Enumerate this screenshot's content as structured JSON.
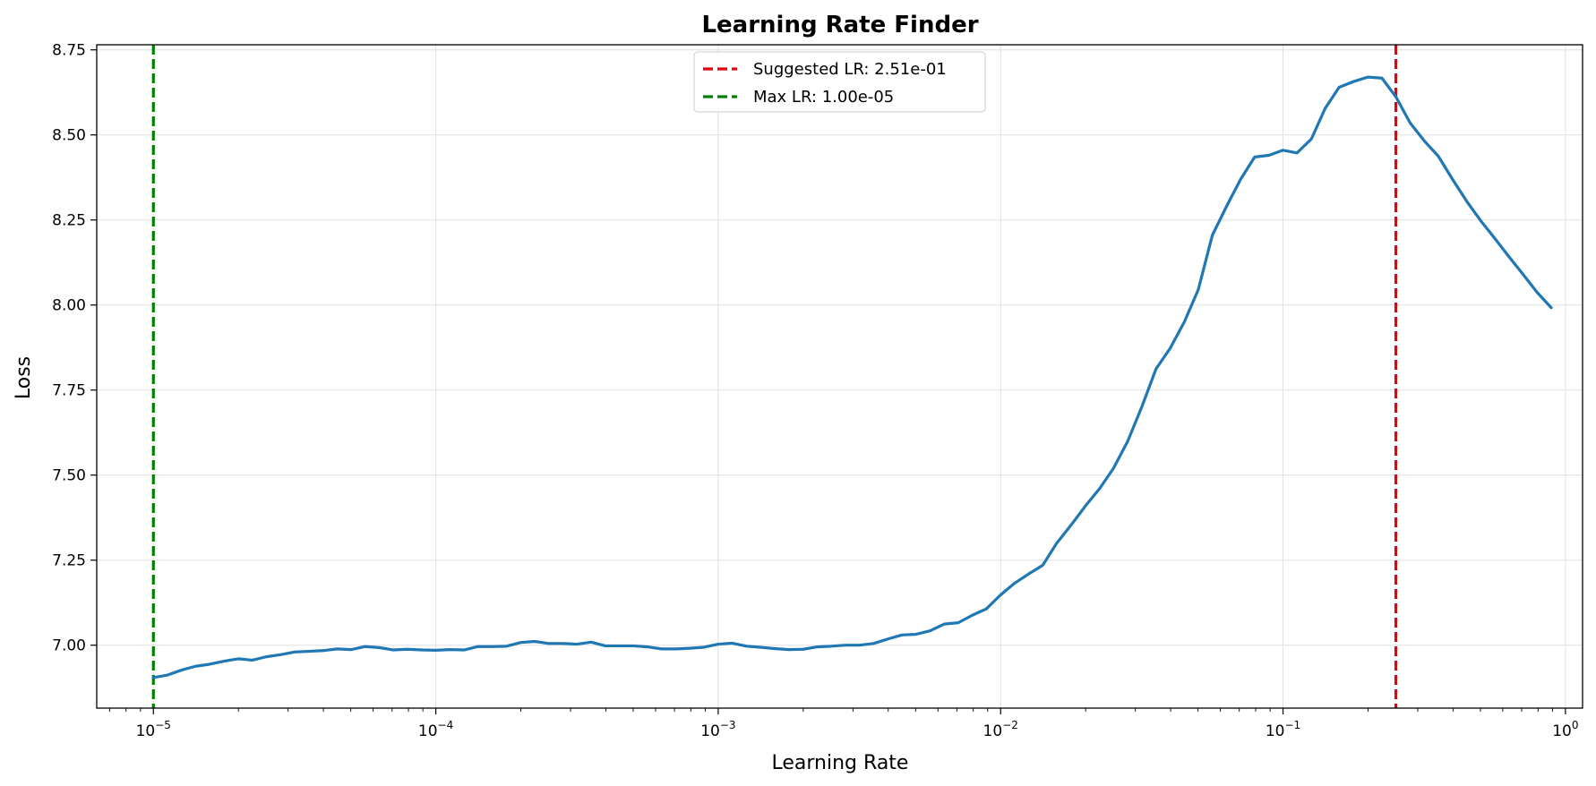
{
  "chart_data": {
    "type": "line",
    "title": "Learning Rate Finder",
    "xlabel": "Learning Rate",
    "ylabel": "Loss",
    "xscale": "log",
    "xlim": [
      6.3e-06,
      1.15
    ],
    "ylim": [
      6.815,
      8.765
    ],
    "x_ticks": [
      {
        "value": 1e-05,
        "base": "10",
        "exp": "−5"
      },
      {
        "value": 0.0001,
        "base": "10",
        "exp": "−4"
      },
      {
        "value": 0.001,
        "base": "10",
        "exp": "−3"
      },
      {
        "value": 0.01,
        "base": "10",
        "exp": "−2"
      },
      {
        "value": 0.1,
        "base": "10",
        "exp": "−1"
      },
      {
        "value": 1,
        "base": "10",
        "exp": "0"
      }
    ],
    "y_ticks": [
      {
        "value": 7.0,
        "label": "7.00"
      },
      {
        "value": 7.25,
        "label": "7.25"
      },
      {
        "value": 7.5,
        "label": "7.50"
      },
      {
        "value": 7.75,
        "label": "7.75"
      },
      {
        "value": 8.0,
        "label": "8.00"
      },
      {
        "value": 8.25,
        "label": "8.25"
      },
      {
        "value": 8.5,
        "label": "8.50"
      },
      {
        "value": 8.75,
        "label": "8.75"
      }
    ],
    "grid": true,
    "legend_position": "top-center",
    "series": [
      {
        "color": "#1f77b4",
        "points": [
          [
            1e-05,
            6.905
          ],
          [
            1.12e-05,
            6.912
          ],
          [
            1.26e-05,
            6.927
          ],
          [
            1.41e-05,
            6.938
          ],
          [
            1.58e-05,
            6.944
          ],
          [
            1.78e-05,
            6.953
          ],
          [
            2e-05,
            6.96
          ],
          [
            2.24e-05,
            6.956
          ],
          [
            2.51e-05,
            6.966
          ],
          [
            2.82e-05,
            6.972
          ],
          [
            3.16e-05,
            6.98
          ],
          [
            3.55e-05,
            6.982
          ],
          [
            3.98e-05,
            6.984
          ],
          [
            4.47e-05,
            6.989
          ],
          [
            5.01e-05,
            6.987
          ],
          [
            5.62e-05,
            6.996
          ],
          [
            6.31e-05,
            6.993
          ],
          [
            7.08e-05,
            6.986
          ],
          [
            7.94e-05,
            6.988
          ],
          [
            8.91e-05,
            6.986
          ],
          [
            0.0001,
            6.985
          ],
          [
            0.000112,
            6.987
          ],
          [
            0.000126,
            6.986
          ],
          [
            0.000141,
            6.996
          ],
          [
            0.000158,
            6.996
          ],
          [
            0.000178,
            6.997
          ],
          [
            0.0002,
            7.008
          ],
          [
            0.000224,
            7.011
          ],
          [
            0.000251,
            7.005
          ],
          [
            0.000282,
            7.005
          ],
          [
            0.000316,
            7.003
          ],
          [
            0.000355,
            7.009
          ],
          [
            0.000398,
            6.998
          ],
          [
            0.000447,
            6.998
          ],
          [
            0.000501,
            6.998
          ],
          [
            0.000562,
            6.995
          ],
          [
            0.000631,
            6.989
          ],
          [
            0.000708,
            6.989
          ],
          [
            0.000794,
            6.991
          ],
          [
            0.000891,
            6.994
          ],
          [
            0.001,
            7.003
          ],
          [
            0.00112,
            7.006
          ],
          [
            0.00126,
            6.997
          ],
          [
            0.00141,
            6.994
          ],
          [
            0.00158,
            6.99
          ],
          [
            0.00178,
            6.987
          ],
          [
            0.002,
            6.988
          ],
          [
            0.00224,
            6.995
          ],
          [
            0.00251,
            6.997
          ],
          [
            0.00282,
            7.0
          ],
          [
            0.00316,
            7.0
          ],
          [
            0.00355,
            7.005
          ],
          [
            0.00398,
            7.018
          ],
          [
            0.00447,
            7.03
          ],
          [
            0.00501,
            7.032
          ],
          [
            0.00562,
            7.042
          ],
          [
            0.00631,
            7.062
          ],
          [
            0.00708,
            7.066
          ],
          [
            0.00794,
            7.088
          ],
          [
            0.00891,
            7.107
          ],
          [
            0.01,
            7.148
          ],
          [
            0.0112,
            7.182
          ],
          [
            0.0126,
            7.21
          ],
          [
            0.0141,
            7.235
          ],
          [
            0.0158,
            7.3
          ],
          [
            0.0178,
            7.354
          ],
          [
            0.02,
            7.41
          ],
          [
            0.0224,
            7.46
          ],
          [
            0.0251,
            7.52
          ],
          [
            0.0282,
            7.6
          ],
          [
            0.0316,
            7.7
          ],
          [
            0.0355,
            7.812
          ],
          [
            0.0398,
            7.872
          ],
          [
            0.0447,
            7.95
          ],
          [
            0.0501,
            8.045
          ],
          [
            0.0562,
            8.205
          ],
          [
            0.0631,
            8.29
          ],
          [
            0.0708,
            8.37
          ],
          [
            0.0794,
            8.435
          ],
          [
            0.0891,
            8.44
          ],
          [
            0.1,
            8.455
          ],
          [
            0.112,
            8.447
          ],
          [
            0.126,
            8.488
          ],
          [
            0.141,
            8.578
          ],
          [
            0.158,
            8.64
          ],
          [
            0.178,
            8.657
          ],
          [
            0.2,
            8.67
          ],
          [
            0.224,
            8.667
          ],
          [
            0.251,
            8.612
          ],
          [
            0.282,
            8.535
          ],
          [
            0.316,
            8.483
          ],
          [
            0.355,
            8.437
          ],
          [
            0.398,
            8.37
          ],
          [
            0.447,
            8.305
          ],
          [
            0.501,
            8.248
          ],
          [
            0.562,
            8.196
          ],
          [
            0.631,
            8.142
          ],
          [
            0.708,
            8.09
          ],
          [
            0.794,
            8.037
          ],
          [
            0.891,
            7.992
          ]
        ]
      }
    ],
    "vlines": [
      {
        "x": 0.251,
        "color": "#e8000b",
        "label": "Suggested LR: 2.51e-01"
      },
      {
        "x": 1e-05,
        "color": "#008000",
        "label": "Max LR: 1.00e-05"
      }
    ]
  }
}
